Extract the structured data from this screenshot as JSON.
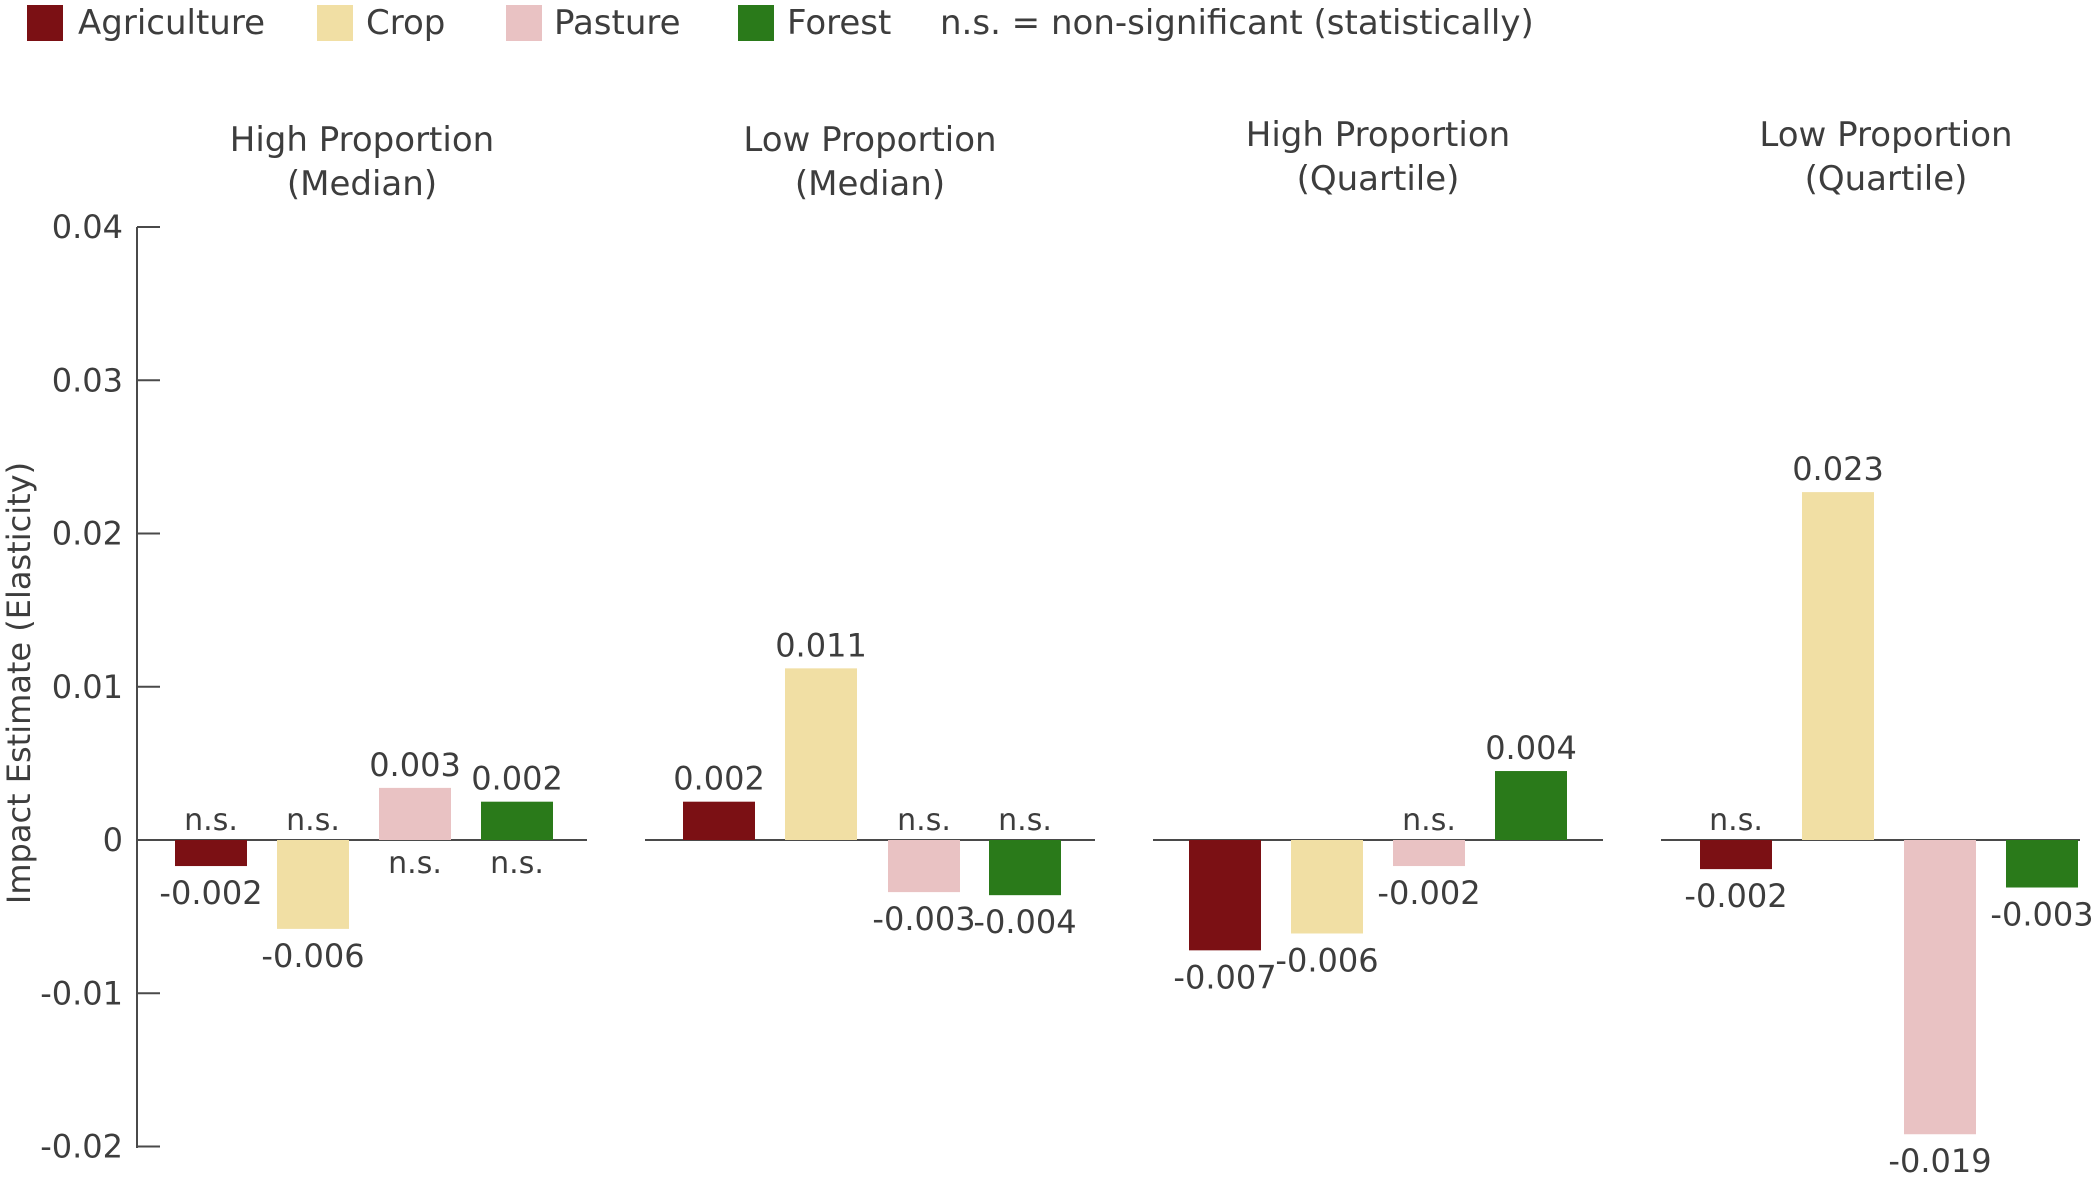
{
  "legend": {
    "note": "n.s. = non-significant (statistically)"
  },
  "chart_data": {
    "type": "bar",
    "ylabel": "Impact Estimate (Elasticity)",
    "ylim": [
      -0.02,
      0.04
    ],
    "yticks": [
      "0.04",
      "0.03",
      "0.02",
      "0.01",
      "0",
      "-0.01",
      "-0.02"
    ],
    "ytick_values": [
      0.04,
      0.03,
      0.02,
      0.01,
      0,
      -0.01,
      -0.02
    ],
    "series": [
      {
        "name": "Agriculture",
        "color": "#7b1014"
      },
      {
        "name": "Crop",
        "color": "#f1dfa4"
      },
      {
        "name": "Pasture",
        "color": "#e9c2c3"
      },
      {
        "name": "Forest",
        "color": "#2a7a1a"
      }
    ],
    "panels": [
      {
        "title_line1": "High Proportion",
        "title_line2": "(Median)",
        "bars": [
          {
            "series": "Agriculture",
            "value": -0.0017,
            "label": "-0.002",
            "ns": "n.s."
          },
          {
            "series": "Crop",
            "value": -0.0058,
            "label": "-0.006",
            "ns": "n.s."
          },
          {
            "series": "Pasture",
            "value": 0.0034,
            "label": "0.003",
            "ns": "n.s."
          },
          {
            "series": "Forest",
            "value": 0.0025,
            "label": "0.002",
            "ns": "n.s."
          }
        ]
      },
      {
        "title_line1": "Low Proportion",
        "title_line2": "(Median)",
        "bars": [
          {
            "series": "Agriculture",
            "value": 0.0025,
            "label": "0.002",
            "ns": ""
          },
          {
            "series": "Crop",
            "value": 0.0112,
            "label": "0.011",
            "ns": ""
          },
          {
            "series": "Pasture",
            "value": -0.0034,
            "label": "-0.003",
            "ns": "n.s."
          },
          {
            "series": "Forest",
            "value": -0.0036,
            "label": "-0.004",
            "ns": "n.s."
          }
        ]
      },
      {
        "title_line1": "High Proportion",
        "title_line2": "(Quartile)",
        "bars": [
          {
            "series": "Agriculture",
            "value": -0.0072,
            "label": "-0.007",
            "ns": ""
          },
          {
            "series": "Crop",
            "value": -0.0061,
            "label": "-0.006",
            "ns": ""
          },
          {
            "series": "Pasture",
            "value": -0.0017,
            "label": "-0.002",
            "ns": "n.s."
          },
          {
            "series": "Forest",
            "value": 0.0045,
            "label": "0.004",
            "ns": ""
          }
        ]
      },
      {
        "title_line1": "Low Proportion",
        "title_line2": "(Quartile)",
        "bars": [
          {
            "series": "Agriculture",
            "value": -0.0019,
            "label": "-0.002",
            "ns": "n.s."
          },
          {
            "series": "Crop",
            "value": 0.0227,
            "label": "0.023",
            "ns": ""
          },
          {
            "series": "Pasture",
            "value": -0.0192,
            "label": "-0.019",
            "ns": ""
          },
          {
            "series": "Forest",
            "value": -0.0031,
            "label": "-0.003",
            "ns": ""
          }
        ]
      }
    ]
  }
}
